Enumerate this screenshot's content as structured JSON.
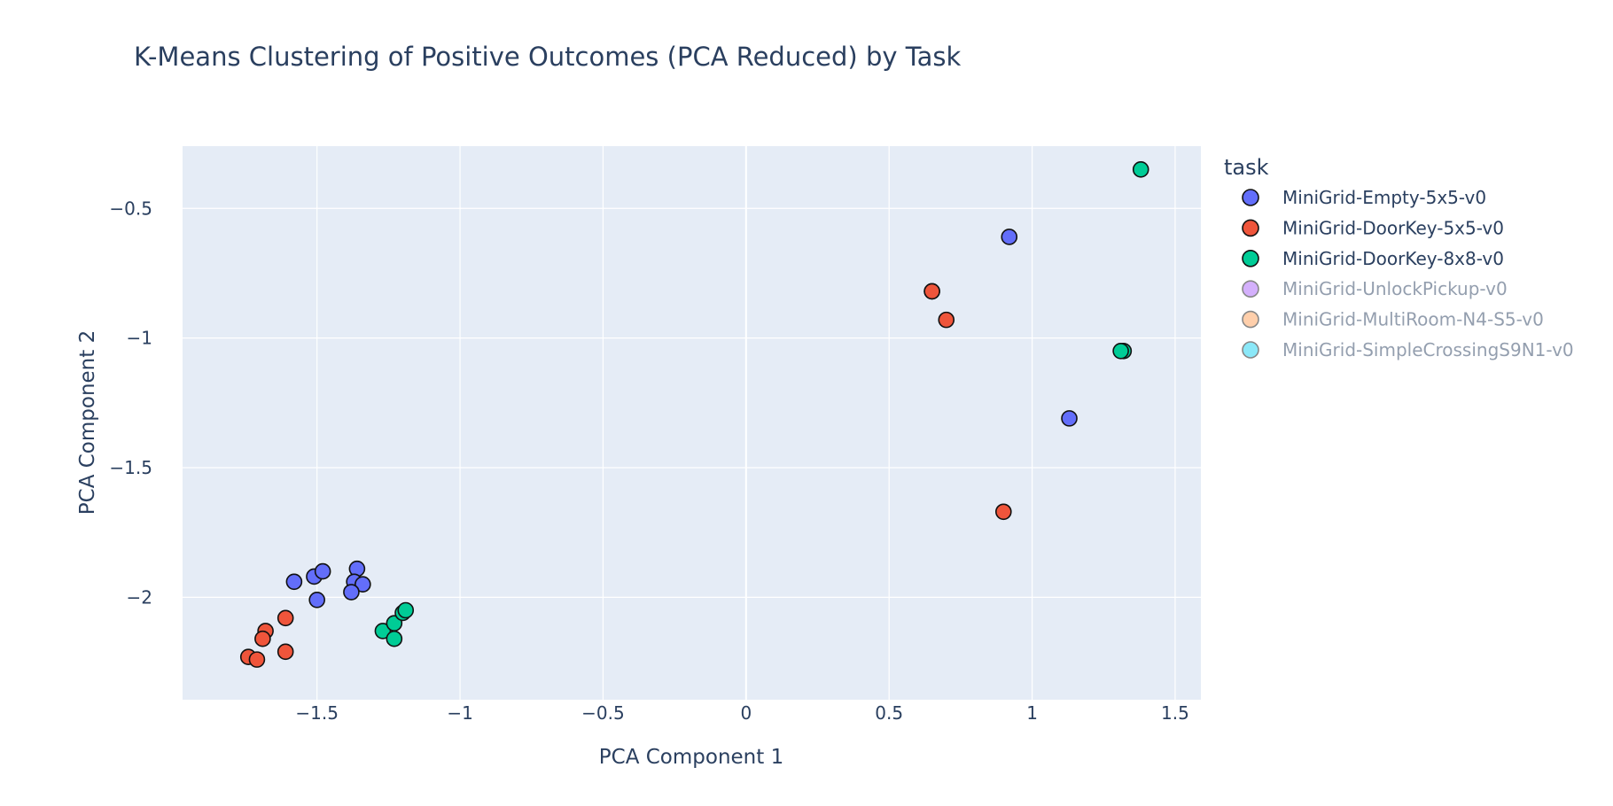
{
  "chart_data": {
    "type": "scatter",
    "title": "K-Means Clustering of Positive Outcomes (PCA Reduced) by Task",
    "xlabel": "PCA Component 1",
    "ylabel": "PCA Component 2",
    "xlim": [
      -1.97,
      1.59
    ],
    "ylim": [
      -2.395,
      -0.26
    ],
    "grid": true,
    "legend_title": "task",
    "legend_position": "right",
    "xticks": [
      {
        "value": -1.5,
        "label": "−1.5"
      },
      {
        "value": -1.0,
        "label": "−1"
      },
      {
        "value": -0.5,
        "label": "−0.5"
      },
      {
        "value": 0.0,
        "label": "0"
      },
      {
        "value": 0.5,
        "label": "0.5"
      },
      {
        "value": 1.0,
        "label": "1"
      },
      {
        "value": 1.5,
        "label": "1.5"
      }
    ],
    "yticks": [
      {
        "value": -0.5,
        "label": "−0.5"
      },
      {
        "value": -1.0,
        "label": "−1"
      },
      {
        "value": -1.5,
        "label": "−1.5"
      },
      {
        "value": -2.0,
        "label": "−2"
      }
    ],
    "series": [
      {
        "name": "MiniGrid-Empty-5x5-v0",
        "color": "#636efa",
        "visible": true,
        "x": [
          0.92,
          1.13,
          -1.58,
          -1.51,
          -1.48,
          -1.5,
          -1.36,
          -1.37,
          -1.34,
          -1.38
        ],
        "y": [
          -0.61,
          -1.31,
          -1.94,
          -1.92,
          -1.9,
          -2.01,
          -1.89,
          -1.94,
          -1.95,
          -1.98
        ]
      },
      {
        "name": "MiniGrid-DoorKey-5x5-v0",
        "color": "#ef553b",
        "visible": true,
        "x": [
          0.65,
          0.65,
          0.7,
          0.9,
          -1.68,
          -1.69,
          -1.61,
          -1.74,
          -1.71,
          -1.61
        ],
        "y": [
          -0.82,
          -0.82,
          -0.93,
          -1.67,
          -2.13,
          -2.16,
          -2.08,
          -2.23,
          -2.24,
          -2.21
        ]
      },
      {
        "name": "MiniGrid-DoorKey-8x8-v0",
        "color": "#00cc96",
        "visible": true,
        "x": [
          1.38,
          1.32,
          1.31,
          -1.27,
          -1.23,
          -1.23,
          -1.2,
          -1.19
        ],
        "y": [
          -0.35,
          -1.05,
          -1.05,
          -2.13,
          -2.1,
          -2.16,
          -2.06,
          -2.05
        ]
      },
      {
        "name": "MiniGrid-UnlockPickup-v0",
        "color": "#ab63fa",
        "visible": false,
        "x": [],
        "y": []
      },
      {
        "name": "MiniGrid-MultiRoom-N4-S5-v0",
        "color": "#ffa15a",
        "visible": false,
        "x": [],
        "y": []
      },
      {
        "name": "MiniGrid-SimpleCrossingS9N1-v0",
        "color": "#19d3f3",
        "visible": false,
        "x": [],
        "y": []
      }
    ]
  }
}
